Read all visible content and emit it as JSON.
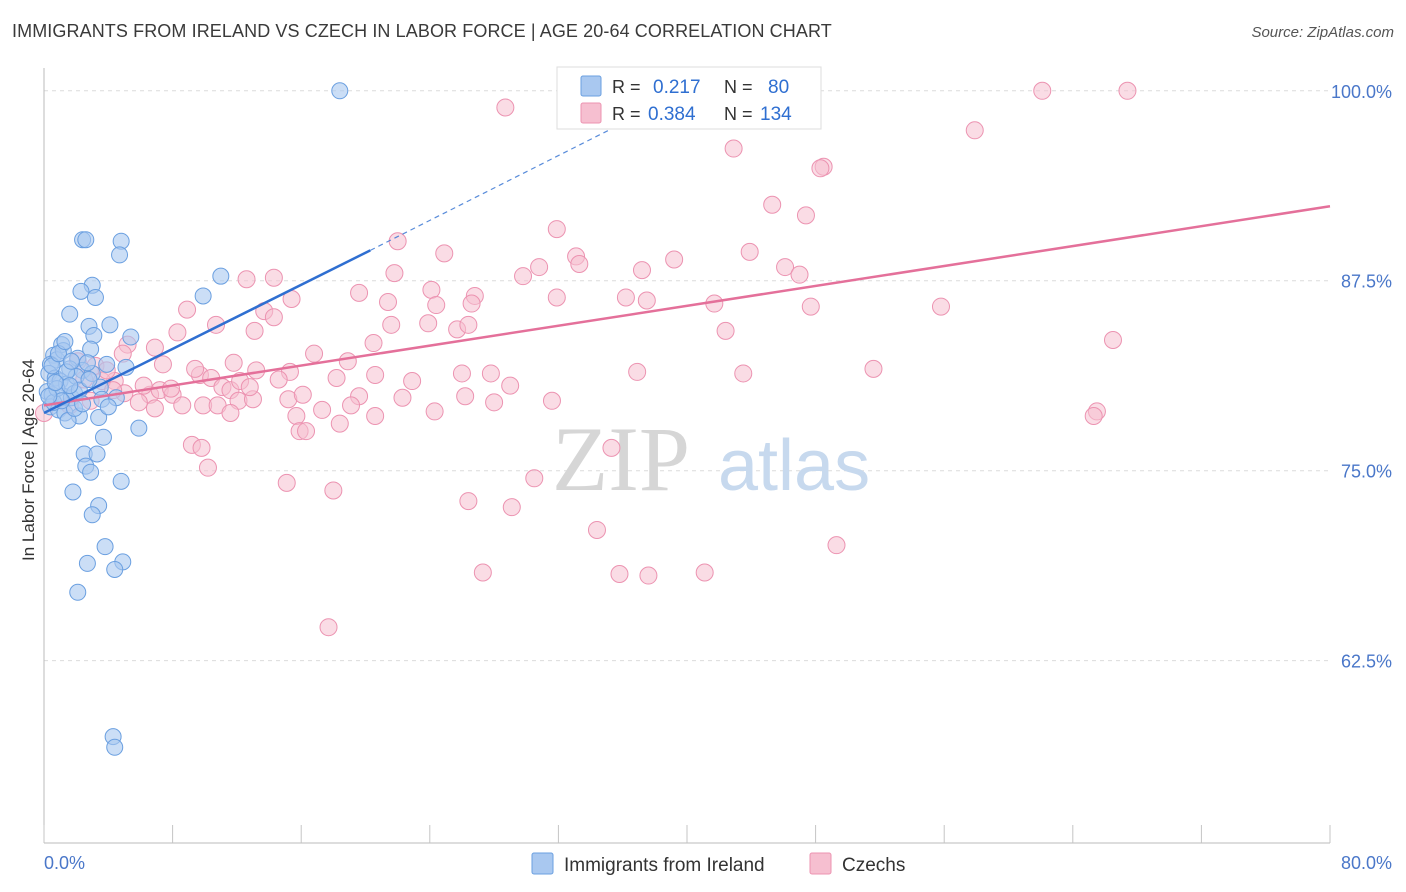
{
  "title": "IMMIGRANTS FROM IRELAND VS CZECH IN LABOR FORCE | AGE 20-64 CORRELATION CHART",
  "source": "Source: ZipAtlas.com",
  "watermark": {
    "zip": "ZIP",
    "atlas": "atlas"
  },
  "colors": {
    "blue_fill": "#a9c8f0",
    "blue_stroke": "#6a9fe0",
    "blue_line": "#2f6fd1",
    "pink_fill": "#f6bfd0",
    "pink_stroke": "#ec93b1",
    "pink_line": "#e4709a",
    "grid": "#dcdcdc",
    "tick_label": "#4a77c9"
  },
  "legend": {
    "rows": [
      {
        "r_label": "R =",
        "r_value": "0.217",
        "n_label": "N =",
        "n_value": "80"
      },
      {
        "r_label": "R =",
        "r_value": "0.384",
        "n_label": "N =",
        "n_value": "134"
      }
    ]
  },
  "bottom_legend": [
    "Immigrants from Ireland",
    "Czechs"
  ],
  "chart_data": {
    "type": "scatter",
    "title": "IMMIGRANTS FROM IRELAND VS CZECH IN LABOR FORCE | AGE 20-64 CORRELATION CHART",
    "xlabel": "",
    "ylabel": "In Labor Force | Age 20-64",
    "xlim": [
      0,
      80
    ],
    "ylim": [
      50.5,
      101.5
    ],
    "x_tick_labels": [
      "0.0%",
      "80.0%"
    ],
    "y_ticks": [
      62.5,
      75.0,
      87.5,
      100.0
    ],
    "y_tick_labels": [
      "62.5%",
      "75.0%",
      "87.5%",
      "100.0%"
    ],
    "grid": true,
    "legend_placement": "top-center",
    "series": [
      {
        "name": "Immigrants from Ireland",
        "R": 0.217,
        "N": 80,
        "trend": {
          "x": [
            0,
            20.3
          ],
          "y": [
            78.8,
            89.5
          ],
          "dashed_to": [
            40,
            100.0
          ]
        },
        "points": [
          [
            18.4,
            100.0
          ],
          [
            2.4,
            90.2
          ],
          [
            2.6,
            90.2
          ],
          [
            4.8,
            90.1
          ],
          [
            4.7,
            89.2
          ],
          [
            11.0,
            87.8
          ],
          [
            3.0,
            87.2
          ],
          [
            2.3,
            86.8
          ],
          [
            3.2,
            86.4
          ],
          [
            9.9,
            86.5
          ],
          [
            1.6,
            85.3
          ],
          [
            4.1,
            84.6
          ],
          [
            2.8,
            84.5
          ],
          [
            3.1,
            83.9
          ],
          [
            5.4,
            83.8
          ],
          [
            1.1,
            83.3
          ],
          [
            2.9,
            83.0
          ],
          [
            0.6,
            82.6
          ],
          [
            0.8,
            82.3
          ],
          [
            2.1,
            82.4
          ],
          [
            0.4,
            82.0
          ],
          [
            1.6,
            81.7
          ],
          [
            2.4,
            81.6
          ],
          [
            3.0,
            81.4
          ],
          [
            5.1,
            81.8
          ],
          [
            0.3,
            81.4
          ],
          [
            0.7,
            81.1
          ],
          [
            1.0,
            80.9
          ],
          [
            1.4,
            80.7
          ],
          [
            3.5,
            80.5
          ],
          [
            0.2,
            80.2
          ],
          [
            0.5,
            80.0
          ],
          [
            1.2,
            79.9
          ],
          [
            1.7,
            79.8
          ],
          [
            3.6,
            79.7
          ],
          [
            4.5,
            79.8
          ],
          [
            0.4,
            79.2
          ],
          [
            0.9,
            79.0
          ],
          [
            1.3,
            78.8
          ],
          [
            2.2,
            78.6
          ],
          [
            3.4,
            78.5
          ],
          [
            1.5,
            78.3
          ],
          [
            0.6,
            79.5
          ],
          [
            1.9,
            79.1
          ],
          [
            5.9,
            77.8
          ],
          [
            3.7,
            77.2
          ],
          [
            2.5,
            76.1
          ],
          [
            3.3,
            76.1
          ],
          [
            2.6,
            75.3
          ],
          [
            2.9,
            74.9
          ],
          [
            4.8,
            74.3
          ],
          [
            1.8,
            73.6
          ],
          [
            3.4,
            72.7
          ],
          [
            3.0,
            72.1
          ],
          [
            3.8,
            70.0
          ],
          [
            4.9,
            69.0
          ],
          [
            2.7,
            68.9
          ],
          [
            4.4,
            68.5
          ],
          [
            2.1,
            67.0
          ],
          [
            4.3,
            57.5
          ],
          [
            4.4,
            56.8
          ],
          [
            1.2,
            82.9
          ],
          [
            2.0,
            81.2
          ],
          [
            0.8,
            80.4
          ],
          [
            1.9,
            80.1
          ],
          [
            2.7,
            82.1
          ],
          [
            1.4,
            81.5
          ],
          [
            0.5,
            81.9
          ],
          [
            3.9,
            82.0
          ],
          [
            1.1,
            79.6
          ],
          [
            2.2,
            80.3
          ],
          [
            0.3,
            79.9
          ],
          [
            1.6,
            80.6
          ],
          [
            4.0,
            79.2
          ],
          [
            0.9,
            82.7
          ],
          [
            2.8,
            81.0
          ],
          [
            1.3,
            83.5
          ],
          [
            0.7,
            80.8
          ],
          [
            2.4,
            79.4
          ],
          [
            1.7,
            82.2
          ]
        ]
      },
      {
        "name": "Czechs",
        "R": 0.384,
        "N": 134,
        "trend": {
          "x": [
            0,
            80
          ],
          "y": [
            79.3,
            92.4
          ]
        },
        "points": [
          [
            62.1,
            100.0
          ],
          [
            67.4,
            100.0
          ],
          [
            43.2,
            100.0
          ],
          [
            28.7,
            98.9
          ],
          [
            57.9,
            97.4
          ],
          [
            42.9,
            96.2
          ],
          [
            48.5,
            95.0
          ],
          [
            48.3,
            94.9
          ],
          [
            45.3,
            92.5
          ],
          [
            47.4,
            91.8
          ],
          [
            31.9,
            90.9
          ],
          [
            22.0,
            90.1
          ],
          [
            24.9,
            89.3
          ],
          [
            33.1,
            89.1
          ],
          [
            39.2,
            88.9
          ],
          [
            43.9,
            89.4
          ],
          [
            33.3,
            88.6
          ],
          [
            30.8,
            88.4
          ],
          [
            21.8,
            88.0
          ],
          [
            37.2,
            88.2
          ],
          [
            46.1,
            88.4
          ],
          [
            29.8,
            87.8
          ],
          [
            47.0,
            87.9
          ],
          [
            14.3,
            87.7
          ],
          [
            12.6,
            87.6
          ],
          [
            24.1,
            86.9
          ],
          [
            19.6,
            86.7
          ],
          [
            26.8,
            86.5
          ],
          [
            31.9,
            86.4
          ],
          [
            37.5,
            86.2
          ],
          [
            41.7,
            86.0
          ],
          [
            15.4,
            86.3
          ],
          [
            21.4,
            86.1
          ],
          [
            24.4,
            85.9
          ],
          [
            26.6,
            86.0
          ],
          [
            36.2,
            86.4
          ],
          [
            8.9,
            85.6
          ],
          [
            13.7,
            85.5
          ],
          [
            14.3,
            85.1
          ],
          [
            47.7,
            85.8
          ],
          [
            55.8,
            85.8
          ],
          [
            21.6,
            84.6
          ],
          [
            8.3,
            84.1
          ],
          [
            23.9,
            84.7
          ],
          [
            13.1,
            84.2
          ],
          [
            25.7,
            84.3
          ],
          [
            26.4,
            84.6
          ],
          [
            42.4,
            84.2
          ],
          [
            20.5,
            83.4
          ],
          [
            16.8,
            82.7
          ],
          [
            18.9,
            82.2
          ],
          [
            5.2,
            83.3
          ],
          [
            4.9,
            82.7
          ],
          [
            7.4,
            82.0
          ],
          [
            13.2,
            81.6
          ],
          [
            15.3,
            81.5
          ],
          [
            20.6,
            81.3
          ],
          [
            26.0,
            81.4
          ],
          [
            27.8,
            81.4
          ],
          [
            36.9,
            81.5
          ],
          [
            43.5,
            81.4
          ],
          [
            51.6,
            81.7
          ],
          [
            66.5,
            83.6
          ],
          [
            3.2,
            81.9
          ],
          [
            4.4,
            80.9
          ],
          [
            9.7,
            81.3
          ],
          [
            10.4,
            81.1
          ],
          [
            11.1,
            80.5
          ],
          [
            11.6,
            80.3
          ],
          [
            18.2,
            81.1
          ],
          [
            19.6,
            79.9
          ],
          [
            22.3,
            79.8
          ],
          [
            26.2,
            79.9
          ],
          [
            29.0,
            80.6
          ],
          [
            31.6,
            79.6
          ],
          [
            6.6,
            80.0
          ],
          [
            7.2,
            80.3
          ],
          [
            8.0,
            80.0
          ],
          [
            8.6,
            79.3
          ],
          [
            9.9,
            79.3
          ],
          [
            10.8,
            79.3
          ],
          [
            12.1,
            79.6
          ],
          [
            13.0,
            79.7
          ],
          [
            15.2,
            79.7
          ],
          [
            17.3,
            79.0
          ],
          [
            19.1,
            79.3
          ],
          [
            28.0,
            79.5
          ],
          [
            6.9,
            79.1
          ],
          [
            5.9,
            79.5
          ],
          [
            1.6,
            79.3
          ],
          [
            2.9,
            79.6
          ],
          [
            11.6,
            78.8
          ],
          [
            15.7,
            78.6
          ],
          [
            20.6,
            78.6
          ],
          [
            24.3,
            78.9
          ],
          [
            65.5,
            78.9
          ],
          [
            65.3,
            78.6
          ],
          [
            18.4,
            78.1
          ],
          [
            15.9,
            77.6
          ],
          [
            16.3,
            77.6
          ],
          [
            9.2,
            76.7
          ],
          [
            9.8,
            76.5
          ],
          [
            35.3,
            76.5
          ],
          [
            10.2,
            75.2
          ],
          [
            15.1,
            74.2
          ],
          [
            30.5,
            74.5
          ],
          [
            18.0,
            73.7
          ],
          [
            26.4,
            73.0
          ],
          [
            29.1,
            72.6
          ],
          [
            34.4,
            71.1
          ],
          [
            49.3,
            70.1
          ],
          [
            27.3,
            68.3
          ],
          [
            35.8,
            68.2
          ],
          [
            37.6,
            68.1
          ],
          [
            41.1,
            68.3
          ],
          [
            17.7,
            64.7
          ],
          [
            0.0,
            78.8
          ],
          [
            3.6,
            80.9
          ],
          [
            5.0,
            80.1
          ],
          [
            2.5,
            81.0
          ],
          [
            7.9,
            80.4
          ],
          [
            12.2,
            80.9
          ],
          [
            14.6,
            81.0
          ],
          [
            22.9,
            80.9
          ],
          [
            4.3,
            80.3
          ],
          [
            6.2,
            80.6
          ],
          [
            9.4,
            81.7
          ],
          [
            16.1,
            80.0
          ],
          [
            12.8,
            80.5
          ],
          [
            2.1,
            82.2
          ],
          [
            3.9,
            81.6
          ],
          [
            11.8,
            82.1
          ],
          [
            6.9,
            83.1
          ],
          [
            10.7,
            84.6
          ]
        ]
      }
    ]
  }
}
